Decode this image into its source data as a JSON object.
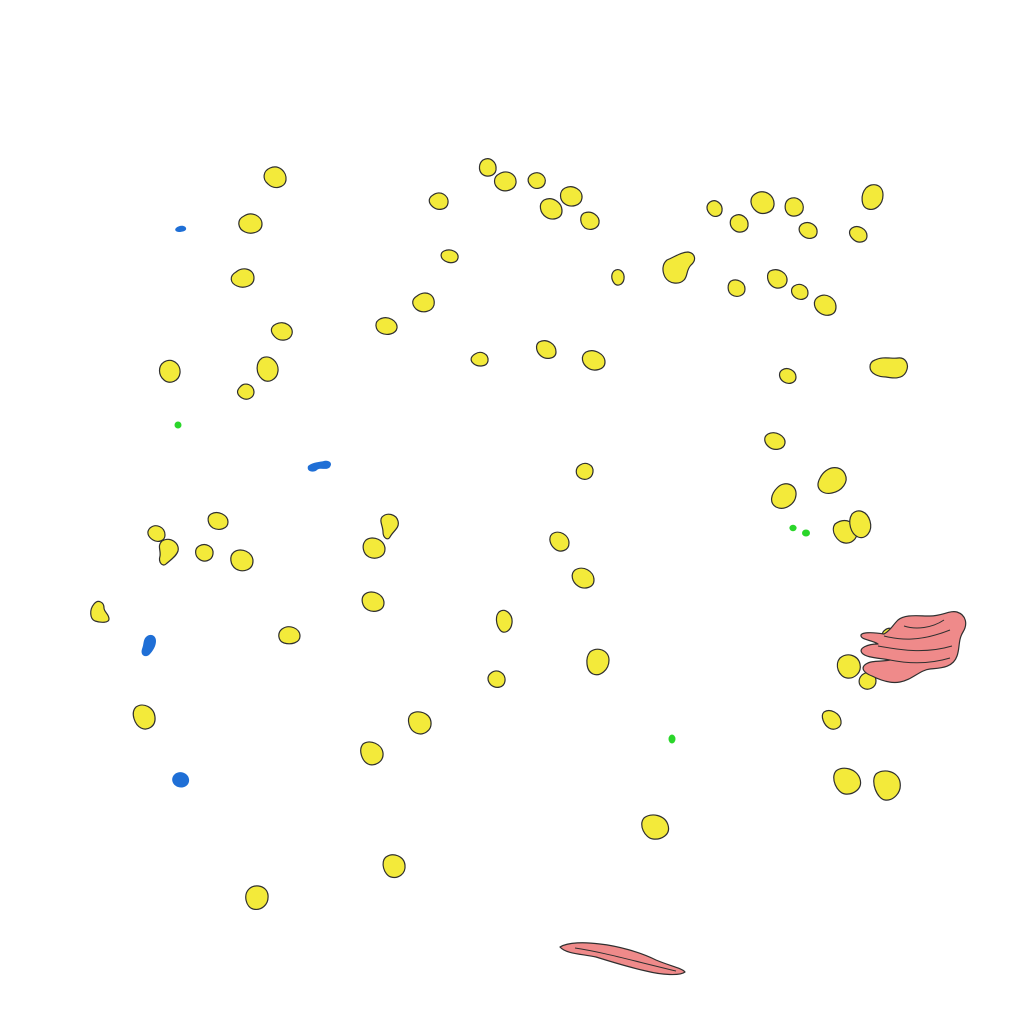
{
  "colors": {
    "background": "#ffffff",
    "yellow_object": "#f3ea3a",
    "blue_object": "#1f6fd6",
    "green_object": "#2ad62a",
    "pink_object": "#ef8a8a",
    "outline": "#2f2f2f"
  },
  "object_classes": [
    "yellow-blob",
    "blue-blob",
    "green-blob",
    "pink-elongated-structure"
  ]
}
